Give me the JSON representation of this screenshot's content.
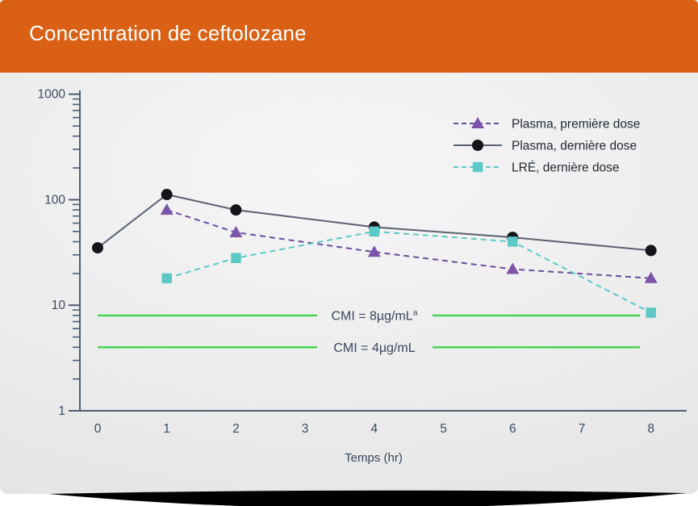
{
  "header": {
    "title": "Concentration de ceftolozane"
  },
  "colors": {
    "header_bg": "#D96014",
    "title_text": "#FFFFFF",
    "axis": "#4E5C72",
    "tick_text": "#3D4A5F",
    "mic_green": "#3FD44F",
    "shadow": "#000000"
  },
  "chart_data": {
    "type": "line",
    "title": "Concentration de ceftolozane",
    "x_label": "Temps (hr)",
    "x_ticks": [
      0,
      1,
      2,
      3,
      4,
      5,
      6,
      7,
      8
    ],
    "y_scale": "log",
    "y_ticks": [
      1,
      10,
      100,
      1000
    ],
    "ylim": [
      1,
      1000
    ],
    "xlim": [
      0,
      8.5
    ],
    "grid": false,
    "legend_position": "upper right",
    "series": [
      {
        "name": "Plasma, première dose",
        "marker": "triangle",
        "dash": true,
        "color": "#7B54A8",
        "line_color": "#6D4C9F",
        "x": [
          1,
          2,
          4,
          6,
          8
        ],
        "y": [
          80,
          49,
          32,
          22,
          18
        ]
      },
      {
        "name": "Plasma, dernière dose",
        "marker": "circle",
        "dash": false,
        "color": "#131519",
        "line_color": "#59616F",
        "x": [
          0,
          1,
          2,
          4,
          6,
          8
        ],
        "y": [
          35,
          112,
          80,
          55,
          44,
          33
        ]
      },
      {
        "name": "LRÉ, dernière dose",
        "marker": "square",
        "dash": true,
        "color": "#5CC9C6",
        "line_color": "#5CC9C6",
        "x": [
          1,
          2,
          4,
          6,
          8
        ],
        "y": [
          18,
          28,
          50,
          40,
          8.5
        ]
      }
    ],
    "reference_lines": [
      {
        "label": "CMI = 8µg/mL",
        "superscript": "a",
        "value": 8
      },
      {
        "label": "CMI = 4µg/mL",
        "superscript": "",
        "value": 4
      }
    ]
  }
}
